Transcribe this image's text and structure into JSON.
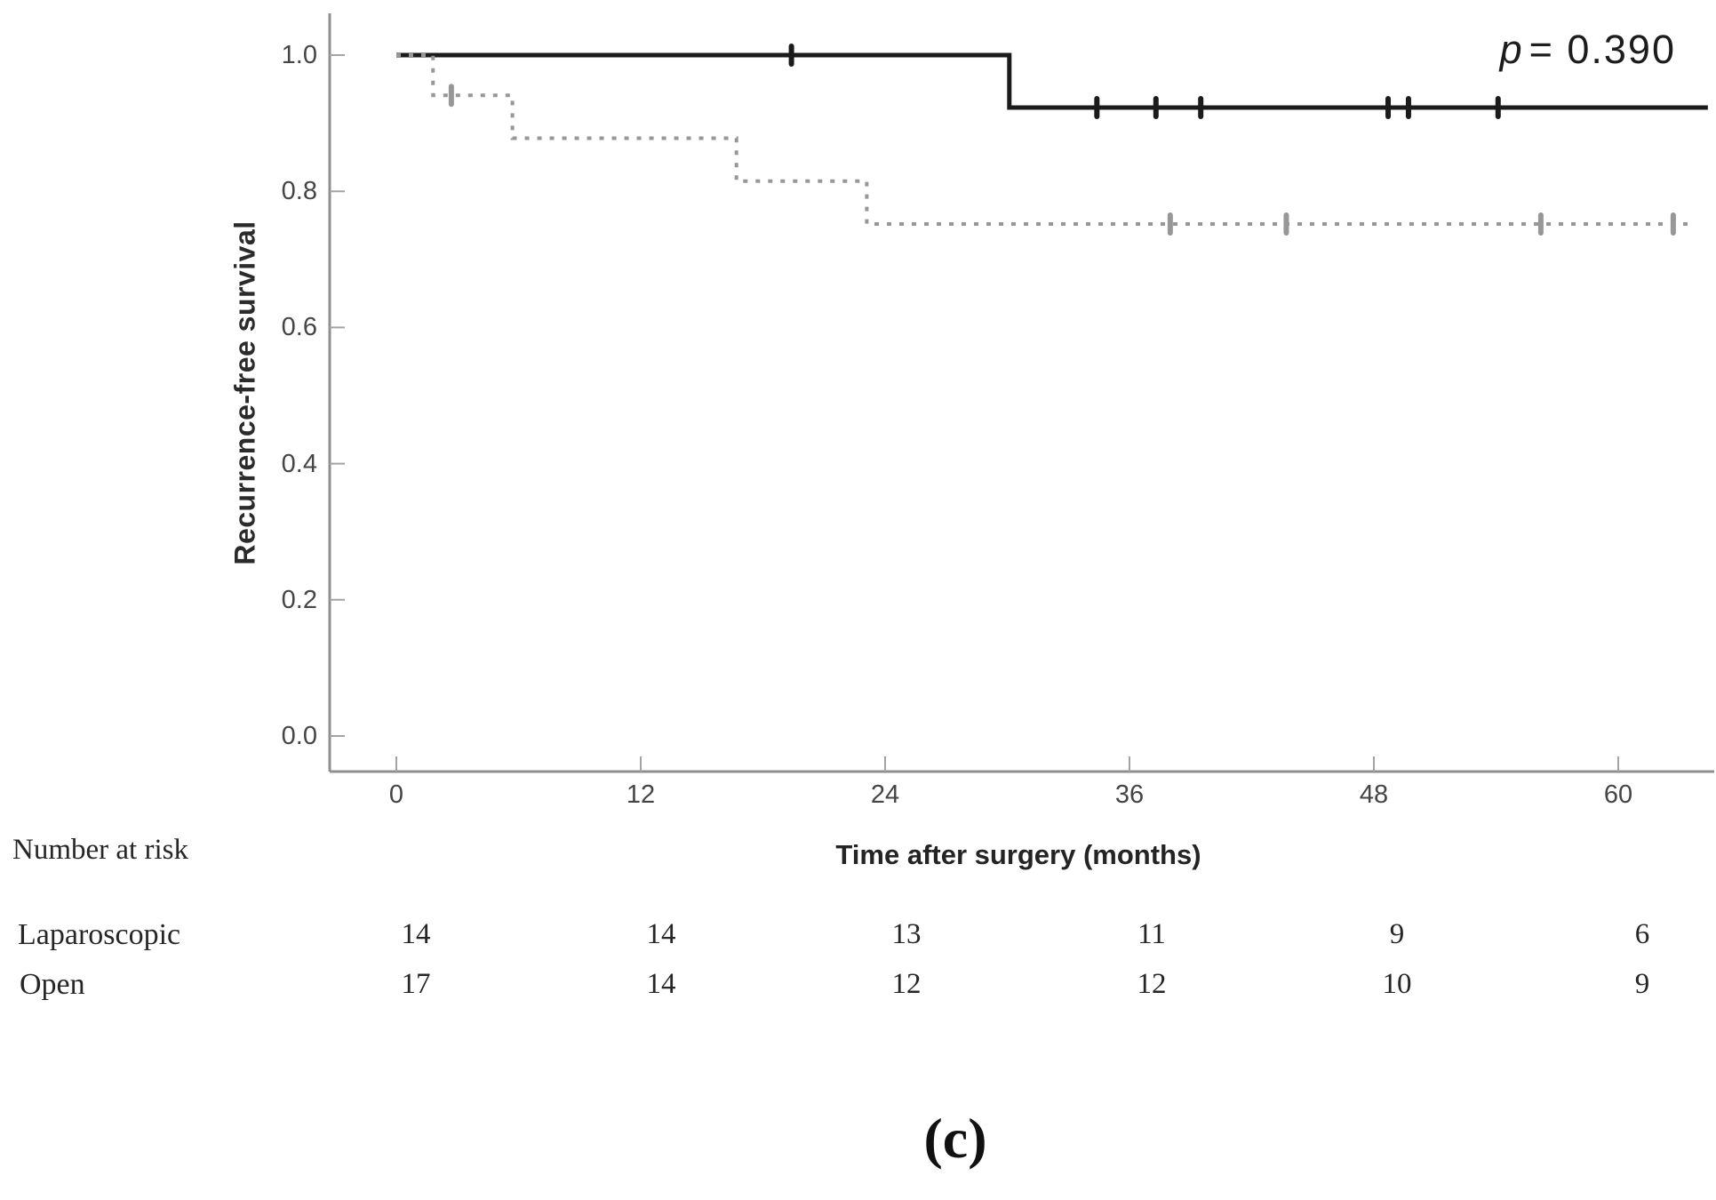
{
  "figure": {
    "caption": "(c)",
    "background": "#ffffff"
  },
  "chart_data": {
    "type": "line",
    "subtype": "kaplan-meier-step",
    "title": "",
    "p_value": {
      "italic": "p",
      "rest": "= 0.390"
    },
    "xlabel": "Time after surgery (months)",
    "ylabel": "Recurrence-free survival",
    "xlim": [
      0,
      64.5
    ],
    "ylim": [
      0.0,
      1.05
    ],
    "grid": false,
    "legend_position": "none",
    "x_ticks": [
      0,
      12,
      24,
      36,
      48,
      60
    ],
    "x_tick_labels": [
      "0",
      "12",
      "24",
      "36",
      "48",
      "60"
    ],
    "y_ticks": [
      1.0,
      0.8,
      0.6,
      0.4,
      0.2,
      0.0
    ],
    "y_tick_labels": [
      "1.0",
      "0.8",
      "0.6",
      "0.4",
      "0.2",
      "0.0"
    ],
    "axis_color": "#8f8f8f",
    "tick_color": "#a3a3a3",
    "series": [
      {
        "name": "Laparoscopic",
        "line": "solid",
        "color": "#1b1b1b",
        "stroke_width": 5,
        "steps": [
          [
            0,
            1.0
          ],
          [
            30.1,
            1.0
          ],
          [
            30.1,
            0.923
          ],
          [
            64.4,
            0.923
          ]
        ],
        "censor_marks": [
          [
            19.4,
            1.0
          ],
          [
            34.4,
            0.923
          ],
          [
            37.3,
            0.923
          ],
          [
            39.5,
            0.923
          ],
          [
            48.7,
            0.923
          ],
          [
            49.7,
            0.923
          ],
          [
            54.1,
            0.923
          ]
        ]
      },
      {
        "name": "Open",
        "line": "dashed",
        "color": "#979797",
        "stroke_width": 4,
        "steps": [
          [
            0,
            1.0
          ],
          [
            1.8,
            1.0
          ],
          [
            1.8,
            0.941
          ],
          [
            5.7,
            0.941
          ],
          [
            5.7,
            0.878
          ],
          [
            16.7,
            0.878
          ],
          [
            16.7,
            0.815
          ],
          [
            23.1,
            0.815
          ],
          [
            23.1,
            0.752
          ],
          [
            63.6,
            0.752
          ]
        ],
        "censor_marks": [
          [
            2.7,
            0.941
          ],
          [
            38.0,
            0.752
          ],
          [
            43.7,
            0.752
          ],
          [
            56.2,
            0.752
          ],
          [
            62.7,
            0.752
          ]
        ]
      }
    ]
  },
  "risk_table": {
    "heading": "Number at risk",
    "time_points": [
      0,
      12,
      24,
      36,
      48,
      60
    ],
    "rows": [
      {
        "label": "Laparoscopic",
        "values": [
          "14",
          "14",
          "13",
          "11",
          "9",
          "6"
        ]
      },
      {
        "label": "Open",
        "values": [
          "17",
          "14",
          "12",
          "12",
          "10",
          "9"
        ]
      }
    ]
  }
}
